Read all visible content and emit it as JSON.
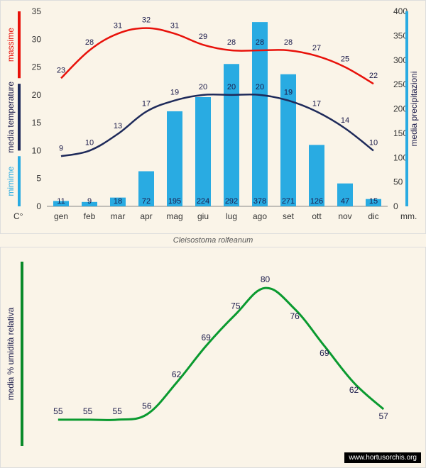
{
  "caption": "Cleisostoma rolfeanum",
  "watermark": "www.hortusorchis.org",
  "top_chart": {
    "type": "combo-bar-line",
    "background_color": "#faf4e8",
    "months": [
      "gen",
      "feb",
      "mar",
      "apr",
      "mag",
      "giu",
      "lug",
      "ago",
      "set",
      "ott",
      "nov",
      "dic"
    ],
    "left_axis": {
      "label_max": "massime",
      "label_max_color": "#e8110a",
      "label_temp": "media temperature",
      "label_temp_color": "#1a1a4a",
      "label_min": "mimime",
      "label_min_color": "#29abe2",
      "label_unit": "C°",
      "ymin": 0,
      "ymax": 35,
      "ytick_step": 5,
      "tick_fontsize": 12
    },
    "right_axis": {
      "label_prec": "media precipitazioni",
      "label_prec_color": "#1a1a4a",
      "label_unit": "mm.",
      "bar_color_accent": "#29abe2",
      "ymin": 0,
      "ymax": 400,
      "ytick_step": 50
    },
    "bars": {
      "color": "#29abe2",
      "values": [
        11,
        9,
        18,
        72,
        195,
        224,
        292,
        378,
        271,
        126,
        47,
        15
      ]
    },
    "line_max": {
      "color": "#e8110a",
      "width": 2.5,
      "values": [
        23,
        28,
        31,
        32,
        31,
        29,
        28,
        28,
        28,
        27,
        25,
        22
      ]
    },
    "line_min": {
      "color": "#1e2a5a",
      "width": 2.5,
      "values": [
        9,
        10,
        13,
        17,
        19,
        20,
        20,
        20,
        19,
        17,
        14,
        10
      ]
    },
    "datalabel_fontsize": 11,
    "datalabel_color": "#1a1a4a",
    "month_fontsize": 12
  },
  "bottom_chart": {
    "type": "line",
    "background_color": "#faf4e8",
    "left_axis": {
      "label": "media % umidità relativa",
      "color": "#0a8a2a"
    },
    "line": {
      "color": "#0a9a2f",
      "width": 3,
      "values": [
        55,
        55,
        55,
        56,
        62,
        69,
        75,
        80,
        76,
        69,
        62,
        57
      ]
    },
    "ymin": 50,
    "ymax": 85,
    "datalabel_fontsize": 12,
    "datalabel_color": "#1a1a4a"
  }
}
